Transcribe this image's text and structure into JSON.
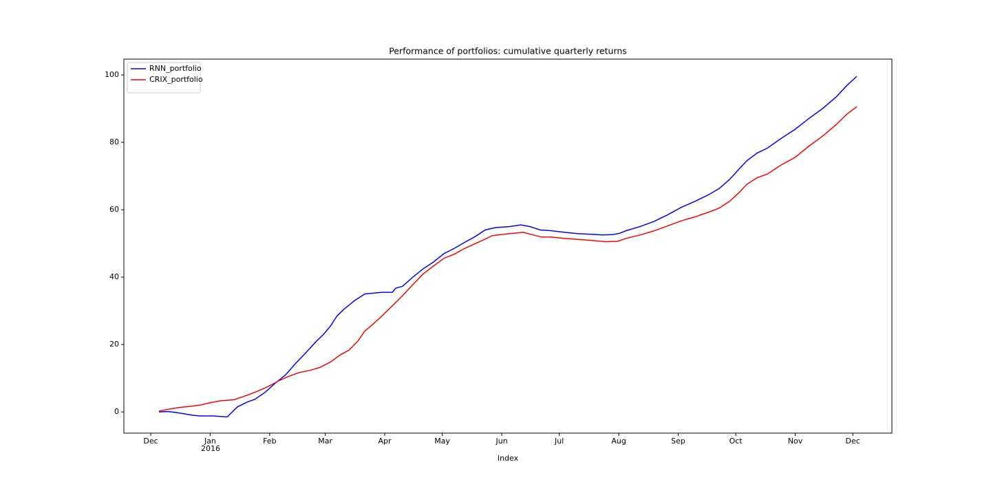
{
  "chart_data": {
    "type": "line",
    "title": "Performance of portfolios: cumulative quarterly returns",
    "x_label": "Index",
    "xtick_sublabel": "2016",
    "legend": "upper left",
    "grid": false,
    "xlim": [
      -14,
      386.4
    ],
    "xticks": [
      {
        "value": 0,
        "label": "Dec"
      },
      {
        "value": 31,
        "label": "Jan"
      },
      {
        "value": 62,
        "label": "Feb"
      },
      {
        "value": 91,
        "label": "Mar"
      },
      {
        "value": 122,
        "label": "Apr"
      },
      {
        "value": 152,
        "label": "May"
      },
      {
        "value": 183,
        "label": "Jun"
      },
      {
        "value": 213,
        "label": "Jul"
      },
      {
        "value": 244,
        "label": "Aug"
      },
      {
        "value": 275,
        "label": "Sep"
      },
      {
        "value": 305,
        "label": "Oct"
      },
      {
        "value": 336,
        "label": "Nov"
      },
      {
        "value": 366,
        "label": "Dec"
      }
    ],
    "ylim": [
      -6.3,
      104.7
    ],
    "yticks": [
      0,
      20,
      40,
      60,
      80,
      100
    ],
    "series": [
      {
        "name": "RNN_portfolio",
        "color": "#0000ff",
        "x": [
          4.3,
          9.3,
          14.7,
          21.9,
          25.5,
          32.7,
          39.8,
          45.2,
          50.6,
          54.2,
          59.6,
          64.9,
          70.3,
          75.7,
          81.1,
          86.4,
          90.1,
          93.7,
          97.2,
          100.8,
          106.2,
          111.6,
          117,
          120.6,
          126,
          127.7,
          131.3,
          136.7,
          142.1,
          147.5,
          152.9,
          158.2,
          163.6,
          169,
          174.4,
          179.8,
          187,
          193,
          197.7,
          203.1,
          208.5,
          215.7,
          222.8,
          230,
          235.4,
          240.8,
          244.3,
          247.9,
          255.1,
          262.3,
          269.5,
          276.6,
          283.8,
          291,
          296.4,
          301.8,
          307.1,
          310.7,
          316.1,
          321.5,
          328.7,
          335.8,
          343,
          350.2,
          357.4,
          362.8,
          368.1
        ],
        "values": [
          0,
          0.1,
          -0.3,
          -1,
          -1.2,
          -1.2,
          -1.5,
          1.5,
          3,
          3.7,
          5.8,
          8.5,
          11,
          14.5,
          17.7,
          21,
          23,
          25.5,
          28.5,
          30.5,
          33,
          35,
          35.3,
          35.5,
          35.5,
          36.7,
          37.3,
          40,
          42.5,
          44.5,
          47,
          48.5,
          50.3,
          52,
          54,
          54.7,
          55,
          55.5,
          55,
          54,
          53.8,
          53.3,
          52.9,
          52.7,
          52.5,
          52.6,
          53,
          53.8,
          55,
          56.5,
          58.5,
          60.7,
          62.5,
          64.5,
          66.3,
          69,
          72.3,
          74.5,
          76.8,
          78.3,
          81.2,
          83.8,
          87,
          90,
          93.5,
          96.8,
          99.6
        ]
      },
      {
        "name": "CRIX_portfolio",
        "color": "#ff0000",
        "x": [
          4.3,
          9.3,
          14.7,
          20.1,
          25.5,
          30.9,
          36.2,
          43.4,
          50.6,
          56,
          61.4,
          66.7,
          72.1,
          77.5,
          82.9,
          88.3,
          93.7,
          99,
          103.3,
          108,
          111.6,
          115.2,
          120.6,
          126,
          131.3,
          136.7,
          142.1,
          147.5,
          152.9,
          158.2,
          163.6,
          169,
          174.4,
          178,
          185.2,
          188.8,
          194.1,
          199.5,
          203.8,
          208.5,
          215.7,
          222.8,
          230,
          237.2,
          243.3,
          247.9,
          255.1,
          262.3,
          269.5,
          276.6,
          283.8,
          291,
          296.4,
          301.8,
          307.1,
          310.7,
          316.1,
          321.5,
          328.7,
          335.8,
          343,
          350.2,
          357.4,
          362.8,
          368.1
        ],
        "values": [
          0.2,
          0.8,
          1.3,
          1.6,
          2,
          2.7,
          3.3,
          3.6,
          5,
          6.2,
          7.6,
          9.2,
          10.6,
          11.7,
          12.3,
          13.2,
          14.8,
          17,
          18.3,
          21,
          24,
          25.7,
          28.5,
          31.5,
          34.5,
          37.8,
          41,
          43.3,
          45.6,
          46.8,
          48.5,
          49.9,
          51.3,
          52.3,
          52.8,
          53,
          53.3,
          52.5,
          51.9,
          51.9,
          51.5,
          51.2,
          50.9,
          50.5,
          50.6,
          51.5,
          52.5,
          53.7,
          55.2,
          56.7,
          57.9,
          59.3,
          60.5,
          62.5,
          65.3,
          67.5,
          69.5,
          70.6,
          73.3,
          75.5,
          78.8,
          81.8,
          85.3,
          88.3,
          90.6
        ]
      }
    ]
  }
}
